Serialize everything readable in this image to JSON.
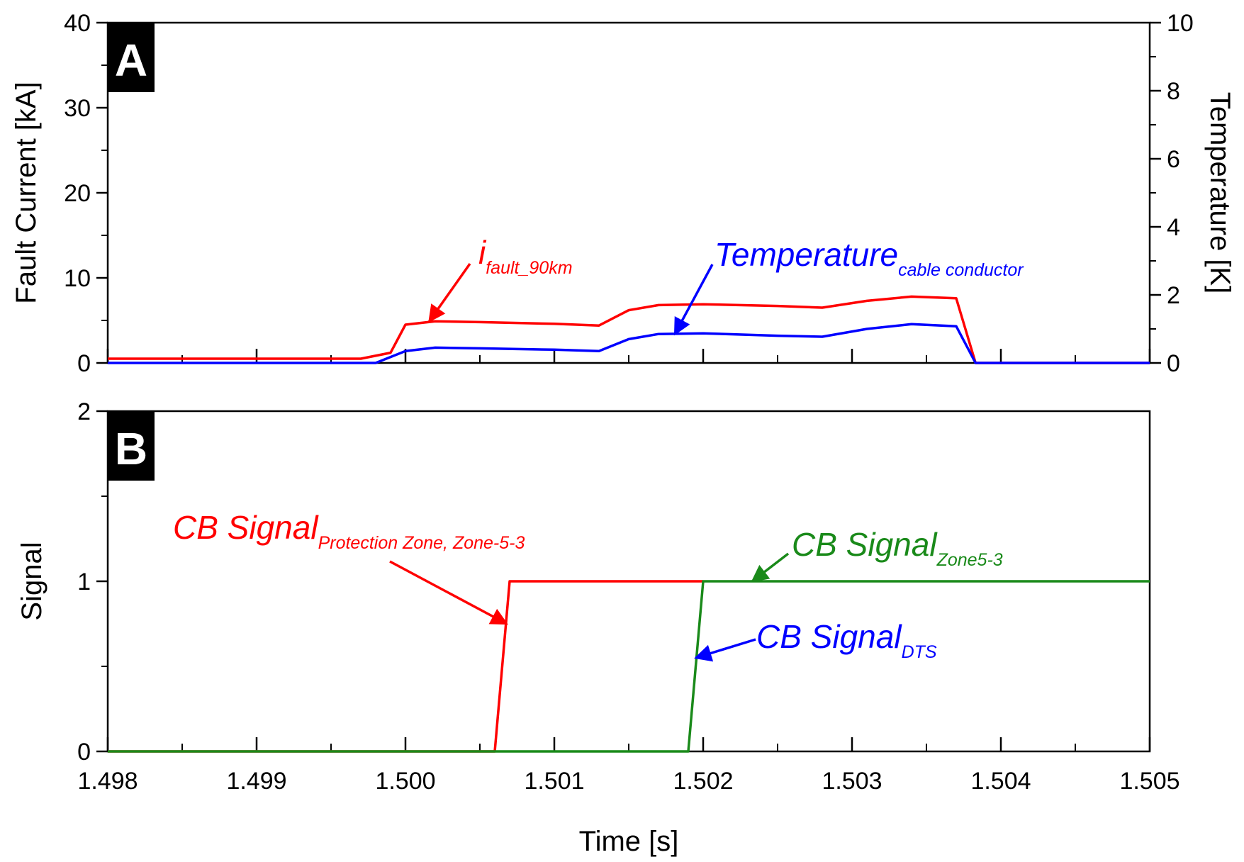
{
  "colors": {
    "red": "#ff0000",
    "blue": "#0000ff",
    "green": "#1a8a1a",
    "axis": "#000000",
    "badge": "#000000"
  },
  "panels": {
    "a": {
      "badge": "A"
    },
    "b": {
      "badge": "B"
    }
  },
  "chart_data": [
    {
      "type": "line",
      "panel": "A",
      "ylabel": "Fault Current [kA]",
      "y2label": "Temperature [K]",
      "xlim": [
        1.498,
        1.505
      ],
      "ylim": [
        0,
        40
      ],
      "y2lim": [
        0,
        10
      ],
      "xticks": [
        1.498,
        1.499,
        1.5,
        1.501,
        1.502,
        1.503,
        1.504,
        1.505
      ],
      "yticks": [
        "0",
        "10",
        "20",
        "30",
        "40"
      ],
      "y2ticks": [
        "0",
        "2",
        "4",
        "6",
        "8",
        "10"
      ],
      "series": [
        {
          "color": "#ff0000",
          "axis": "left",
          "points": [
            [
              1.498,
              0.5
            ],
            [
              1.4997,
              0.5
            ],
            [
              1.4999,
              1.2
            ],
            [
              1.5,
              4.5
            ],
            [
              1.5002,
              4.9
            ],
            [
              1.5005,
              4.8
            ],
            [
              1.501,
              4.6
            ],
            [
              1.5013,
              4.4
            ],
            [
              1.5015,
              6.2
            ],
            [
              1.5017,
              6.8
            ],
            [
              1.502,
              6.9
            ],
            [
              1.5025,
              6.7
            ],
            [
              1.5028,
              6.5
            ],
            [
              1.5031,
              7.3
            ],
            [
              1.5034,
              7.8
            ],
            [
              1.5037,
              7.6
            ],
            [
              1.50383,
              0
            ],
            [
              1.505,
              0
            ]
          ]
        },
        {
          "color": "#0000ff",
          "axis": "right",
          "points": [
            [
              1.498,
              0
            ],
            [
              1.4998,
              0
            ],
            [
              1.5,
              0.35
            ],
            [
              1.5002,
              0.45
            ],
            [
              1.5005,
              0.43
            ],
            [
              1.501,
              0.39
            ],
            [
              1.5013,
              0.35
            ],
            [
              1.5015,
              0.7
            ],
            [
              1.5017,
              0.85
            ],
            [
              1.502,
              0.87
            ],
            [
              1.5025,
              0.8
            ],
            [
              1.5028,
              0.77
            ],
            [
              1.5031,
              1.0
            ],
            [
              1.5034,
              1.14
            ],
            [
              1.5037,
              1.08
            ],
            [
              1.50383,
              0
            ],
            [
              1.505,
              0
            ]
          ]
        }
      ],
      "annotations": [
        {
          "text": "i",
          "sub": "fault_90km",
          "color": "#ff0000",
          "arrow_to": [
            1.50016,
            4.9
          ]
        },
        {
          "text": "Temperature",
          "sub": "cable conductor",
          "color": "#0000ff",
          "arrow_to": [
            1.50181,
            3.4
          ]
        }
      ]
    },
    {
      "type": "line",
      "panel": "B",
      "xlabel": "Time [s]",
      "ylabel": "Signal",
      "xlim": [
        1.498,
        1.505
      ],
      "ylim": [
        0,
        2
      ],
      "xticks": [
        "1.498",
        "1.499",
        "1.500",
        "1.501",
        "1.502",
        "1.503",
        "1.504",
        "1.505"
      ],
      "yticks": [
        "0",
        "1",
        "2"
      ],
      "series": [
        {
          "color": "#ff0000",
          "points": [
            [
              1.498,
              0
            ],
            [
              1.5006,
              0
            ],
            [
              1.5007,
              1
            ],
            [
              1.502,
              1
            ]
          ]
        },
        {
          "color": "#1a8a1a",
          "points": [
            [
              1.498,
              0
            ],
            [
              1.5019,
              0
            ],
            [
              1.502,
              1
            ],
            [
              1.505,
              1
            ]
          ]
        }
      ],
      "annotations": [
        {
          "text": "CB Signal",
          "sub": "Protection Zone, Zone-5-3",
          "color": "#ff0000",
          "arrow_to": [
            1.50068,
            0.75
          ]
        },
        {
          "text": "CB Signal",
          "sub": "Zone5-3",
          "color": "#1a8a1a",
          "arrow_to": [
            1.50233,
            1.0
          ]
        },
        {
          "text": "CB Signal",
          "sub": "DTS",
          "color": "#0000ff",
          "arrow_to": [
            1.50195,
            0.55
          ]
        }
      ]
    }
  ]
}
